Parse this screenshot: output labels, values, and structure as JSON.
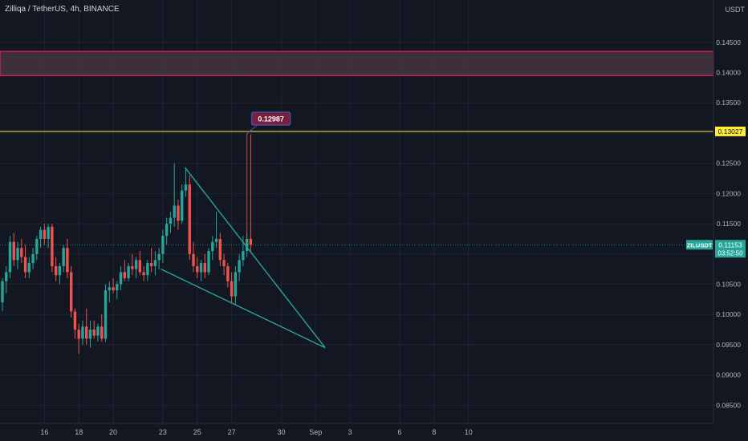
{
  "header": {
    "title": "Zilliqa / TetherUS, 4h, BINANCE",
    "currency": "USDT"
  },
  "colors": {
    "background": "#131722",
    "up": "#26a69a",
    "down": "#ef5350",
    "grid": "#1f2433",
    "axis_text": "#b2b5be",
    "wedge": "#26a69a",
    "resistance": "#ffeb3b",
    "zone_border": "#e91e63",
    "zone_fill": "#4b3a44"
  },
  "chart_data": {
    "type": "candlestick",
    "symbol": "ZILUSDT",
    "ylim": [
      0.082,
      0.152
    ],
    "y_ticks": [
      "0.08500",
      "0.09000",
      "0.09500",
      "0.10000",
      "0.10500",
      "0.11000",
      "0.11500",
      "0.12000",
      "0.12500",
      "0.13000",
      "0.13500",
      "0.14000",
      "0.14500"
    ],
    "x_ticks": [
      {
        "label": "16",
        "bar": 11
      },
      {
        "label": "18",
        "bar": 20
      },
      {
        "label": "20",
        "bar": 29
      },
      {
        "label": "23",
        "bar": 42
      },
      {
        "label": "25",
        "bar": 51
      },
      {
        "label": "27",
        "bar": 60
      },
      {
        "label": "30",
        "bar": 73
      },
      {
        "label": "Sep",
        "bar": 82
      },
      {
        "label": "3",
        "bar": 91
      },
      {
        "label": "6",
        "bar": 104
      },
      {
        "label": "8",
        "bar": 113
      },
      {
        "label": "10",
        "bar": 122
      }
    ],
    "last_price": "0.11153",
    "countdown": "03:52:50",
    "resistance": {
      "value": 0.13027,
      "label": "0.13027"
    },
    "zone": {
      "from": 0.1395,
      "to": 0.1435
    },
    "target": {
      "value": 0.12987,
      "label": "0.12987",
      "bar": 64
    },
    "wedge": {
      "upper": [
        {
          "bar": 47.8,
          "price": 0.1243
        },
        {
          "bar": 84.5,
          "price": 0.0945
        }
      ],
      "lower": [
        {
          "bar": 41.5,
          "price": 0.1075
        },
        {
          "bar": 84.5,
          "price": 0.0945
        }
      ]
    },
    "candles": [
      {
        "o": 0.102,
        "h": 0.106,
        "l": 0.1005,
        "c": 0.1055
      },
      {
        "o": 0.1055,
        "h": 0.108,
        "l": 0.1035,
        "c": 0.107
      },
      {
        "o": 0.107,
        "h": 0.113,
        "l": 0.106,
        "c": 0.112
      },
      {
        "o": 0.112,
        "h": 0.1135,
        "l": 0.108,
        "c": 0.109
      },
      {
        "o": 0.109,
        "h": 0.112,
        "l": 0.1075,
        "c": 0.111
      },
      {
        "o": 0.111,
        "h": 0.1125,
        "l": 0.1085,
        "c": 0.1095
      },
      {
        "o": 0.1095,
        "h": 0.1115,
        "l": 0.106,
        "c": 0.107
      },
      {
        "o": 0.107,
        "h": 0.1095,
        "l": 0.106,
        "c": 0.1085
      },
      {
        "o": 0.1085,
        "h": 0.111,
        "l": 0.1075,
        "c": 0.11
      },
      {
        "o": 0.11,
        "h": 0.113,
        "l": 0.109,
        "c": 0.1125
      },
      {
        "o": 0.1125,
        "h": 0.1145,
        "l": 0.111,
        "c": 0.114
      },
      {
        "o": 0.114,
        "h": 0.115,
        "l": 0.1115,
        "c": 0.1125
      },
      {
        "o": 0.1125,
        "h": 0.115,
        "l": 0.111,
        "c": 0.1145
      },
      {
        "o": 0.1145,
        "h": 0.115,
        "l": 0.107,
        "c": 0.108
      },
      {
        "o": 0.108,
        "h": 0.1095,
        "l": 0.1055,
        "c": 0.1065
      },
      {
        "o": 0.1065,
        "h": 0.1085,
        "l": 0.105,
        "c": 0.108
      },
      {
        "o": 0.108,
        "h": 0.1115,
        "l": 0.107,
        "c": 0.111
      },
      {
        "o": 0.111,
        "h": 0.1125,
        "l": 0.106,
        "c": 0.107
      },
      {
        "o": 0.107,
        "h": 0.108,
        "l": 0.0995,
        "c": 0.1005
      },
      {
        "o": 0.1005,
        "h": 0.101,
        "l": 0.096,
        "c": 0.0975
      },
      {
        "o": 0.0975,
        "h": 0.0985,
        "l": 0.0935,
        "c": 0.096
      },
      {
        "o": 0.096,
        "h": 0.099,
        "l": 0.095,
        "c": 0.098
      },
      {
        "o": 0.098,
        "h": 0.101,
        "l": 0.095,
        "c": 0.096
      },
      {
        "o": 0.096,
        "h": 0.099,
        "l": 0.0945,
        "c": 0.0975
      },
      {
        "o": 0.0975,
        "h": 0.099,
        "l": 0.096,
        "c": 0.0965
      },
      {
        "o": 0.0965,
        "h": 0.0985,
        "l": 0.0955,
        "c": 0.098
      },
      {
        "o": 0.098,
        "h": 0.1,
        "l": 0.0955,
        "c": 0.096
      },
      {
        "o": 0.096,
        "h": 0.105,
        "l": 0.0955,
        "c": 0.104
      },
      {
        "o": 0.104,
        "h": 0.1055,
        "l": 0.102,
        "c": 0.1045
      },
      {
        "o": 0.1045,
        "h": 0.106,
        "l": 0.1035,
        "c": 0.104
      },
      {
        "o": 0.104,
        "h": 0.1055,
        "l": 0.1025,
        "c": 0.105
      },
      {
        "o": 0.105,
        "h": 0.108,
        "l": 0.104,
        "c": 0.107
      },
      {
        "o": 0.107,
        "h": 0.109,
        "l": 0.1055,
        "c": 0.106
      },
      {
        "o": 0.106,
        "h": 0.1085,
        "l": 0.1055,
        "c": 0.108
      },
      {
        "o": 0.108,
        "h": 0.11,
        "l": 0.1065,
        "c": 0.1075
      },
      {
        "o": 0.1075,
        "h": 0.1095,
        "l": 0.106,
        "c": 0.109
      },
      {
        "o": 0.109,
        "h": 0.1105,
        "l": 0.1065,
        "c": 0.107
      },
      {
        "o": 0.107,
        "h": 0.108,
        "l": 0.1055,
        "c": 0.1065
      },
      {
        "o": 0.1065,
        "h": 0.109,
        "l": 0.1055,
        "c": 0.1085
      },
      {
        "o": 0.1085,
        "h": 0.111,
        "l": 0.107,
        "c": 0.108
      },
      {
        "o": 0.108,
        "h": 0.1105,
        "l": 0.1065,
        "c": 0.109
      },
      {
        "o": 0.109,
        "h": 0.111,
        "l": 0.1075,
        "c": 0.11
      },
      {
        "o": 0.11,
        "h": 0.114,
        "l": 0.1085,
        "c": 0.113
      },
      {
        "o": 0.113,
        "h": 0.116,
        "l": 0.1115,
        "c": 0.115
      },
      {
        "o": 0.115,
        "h": 0.117,
        "l": 0.1135,
        "c": 0.116
      },
      {
        "o": 0.116,
        "h": 0.125,
        "l": 0.1145,
        "c": 0.118
      },
      {
        "o": 0.118,
        "h": 0.119,
        "l": 0.114,
        "c": 0.1155
      },
      {
        "o": 0.1155,
        "h": 0.1215,
        "l": 0.115,
        "c": 0.1205
      },
      {
        "o": 0.1205,
        "h": 0.1243,
        "l": 0.1195,
        "c": 0.1215
      },
      {
        "o": 0.1215,
        "h": 0.123,
        "l": 0.109,
        "c": 0.11
      },
      {
        "o": 0.11,
        "h": 0.112,
        "l": 0.107,
        "c": 0.108
      },
      {
        "o": 0.108,
        "h": 0.1095,
        "l": 0.106,
        "c": 0.107
      },
      {
        "o": 0.107,
        "h": 0.109,
        "l": 0.1055,
        "c": 0.1085
      },
      {
        "o": 0.1085,
        "h": 0.11,
        "l": 0.106,
        "c": 0.107
      },
      {
        "o": 0.107,
        "h": 0.111,
        "l": 0.1065,
        "c": 0.1105
      },
      {
        "o": 0.1105,
        "h": 0.113,
        "l": 0.109,
        "c": 0.112
      },
      {
        "o": 0.112,
        "h": 0.117,
        "l": 0.111,
        "c": 0.1125
      },
      {
        "o": 0.1125,
        "h": 0.1135,
        "l": 0.108,
        "c": 0.109
      },
      {
        "o": 0.109,
        "h": 0.11,
        "l": 0.1065,
        "c": 0.108
      },
      {
        "o": 0.108,
        "h": 0.1085,
        "l": 0.1045,
        "c": 0.1055
      },
      {
        "o": 0.1055,
        "h": 0.107,
        "l": 0.102,
        "c": 0.103
      },
      {
        "o": 0.103,
        "h": 0.108,
        "l": 0.1015,
        "c": 0.107
      },
      {
        "o": 0.107,
        "h": 0.11,
        "l": 0.1055,
        "c": 0.109
      },
      {
        "o": 0.109,
        "h": 0.113,
        "l": 0.108,
        "c": 0.1105
      },
      {
        "o": 0.1105,
        "h": 0.1135,
        "l": 0.1095,
        "c": 0.1125
      },
      {
        "o": 0.1125,
        "h": 0.1298,
        "l": 0.1105,
        "c": 0.1115
      }
    ]
  }
}
